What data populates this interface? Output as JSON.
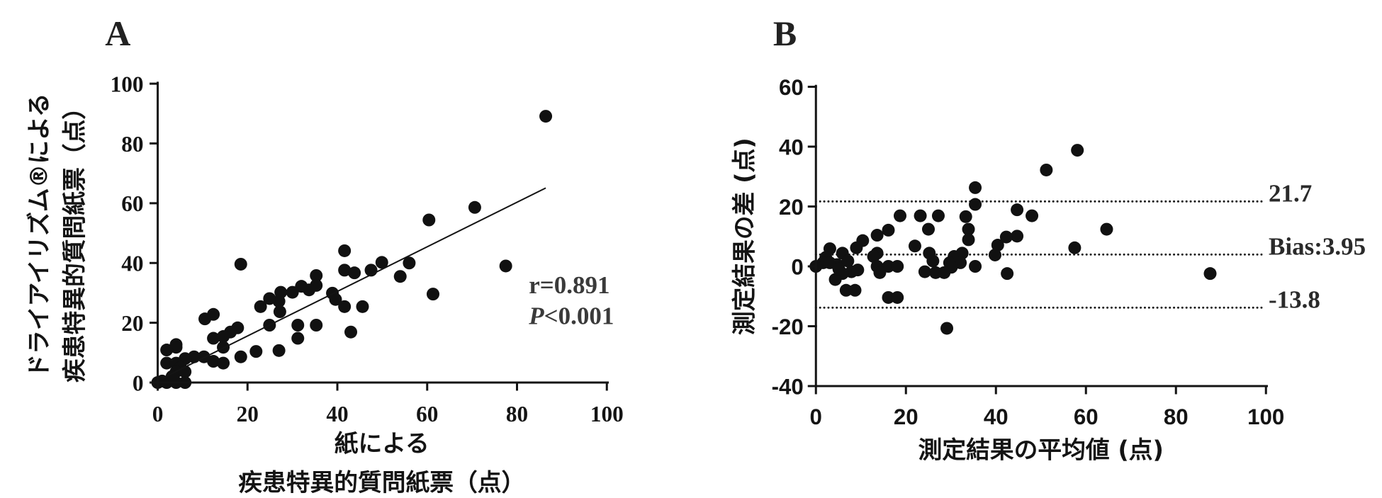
{
  "colors": {
    "ink": "#111111",
    "annotation": "#3a3a3a"
  },
  "chart_data": [
    {
      "panel": "A",
      "type": "scatter",
      "xlabel": [
        "紙による",
        "疾患特異的質問紙票（点）"
      ],
      "ylabel": [
        "ドライアイリズム®による",
        "疾患特異的質問紙票（点）"
      ],
      "xlim": [
        0,
        100
      ],
      "ylim": [
        0,
        100
      ],
      "xticks": [
        0,
        20,
        40,
        60,
        80,
        100
      ],
      "yticks": [
        0,
        20,
        40,
        60,
        80,
        100
      ],
      "grid": false,
      "points": [
        [
          86.4,
          89.1
        ],
        [
          70.6,
          58.6
        ],
        [
          60.4,
          54.4
        ],
        [
          77.5,
          39.0
        ],
        [
          61.3,
          29.6
        ],
        [
          56.0,
          40.0
        ],
        [
          54.0,
          35.5
        ],
        [
          49.9,
          40.2
        ],
        [
          47.5,
          37.6
        ],
        [
          41.6,
          44.1
        ],
        [
          41.6,
          37.6
        ],
        [
          43.8,
          36.7
        ],
        [
          45.6,
          25.4
        ],
        [
          43.0,
          16.9
        ],
        [
          41.6,
          25.4
        ],
        [
          38.9,
          29.9
        ],
        [
          39.6,
          27.8
        ],
        [
          35.3,
          35.8
        ],
        [
          35.3,
          32.5
        ],
        [
          33.7,
          31.0
        ],
        [
          32.0,
          32.2
        ],
        [
          30.0,
          30.2
        ],
        [
          31.2,
          19.2
        ],
        [
          31.2,
          14.8
        ],
        [
          35.3,
          19.2
        ],
        [
          27.4,
          30.2
        ],
        [
          27.0,
          27.2
        ],
        [
          27.2,
          23.7
        ],
        [
          24.9,
          28.1
        ],
        [
          22.9,
          25.4
        ],
        [
          24.9,
          19.2
        ],
        [
          27.0,
          10.7
        ],
        [
          21.9,
          10.4
        ],
        [
          18.5,
          39.6
        ],
        [
          18.5,
          8.6
        ],
        [
          17.8,
          18.3
        ],
        [
          16.2,
          16.9
        ],
        [
          14.6,
          15.4
        ],
        [
          12.4,
          22.8
        ],
        [
          10.5,
          21.3
        ],
        [
          12.4,
          14.8
        ],
        [
          12.4,
          7.1
        ],
        [
          14.6,
          6.5
        ],
        [
          14.6,
          11.8
        ],
        [
          10.3,
          8.6
        ],
        [
          8.1,
          8.6
        ],
        [
          6.1,
          8.0
        ],
        [
          4.1,
          12.7
        ],
        [
          4.1,
          11.8
        ],
        [
          2.0,
          10.9
        ],
        [
          2.0,
          6.5
        ],
        [
          4.1,
          6.5
        ],
        [
          5.1,
          5.0
        ],
        [
          4.1,
          3.6
        ],
        [
          6.1,
          3.6
        ],
        [
          6.1,
          0.0
        ],
        [
          4.1,
          0.0
        ],
        [
          2.0,
          0.0
        ],
        [
          0.0,
          0.0
        ],
        [
          3.2,
          2.0
        ],
        [
          1.0,
          0.5
        ]
      ],
      "fit_line": {
        "x": [
          1.0,
          86.4
        ],
        "y": [
          1.4,
          65.1
        ]
      },
      "annotation": {
        "r": "r=0.891",
        "p_symbol": "P",
        "p_text": "<0.001"
      }
    },
    {
      "panel": "B",
      "type": "scatter",
      "xlabel": "測定結果の平均値 (点)",
      "ylabel": "測定結果の差 (点)",
      "xlim": [
        0,
        100
      ],
      "ylim": [
        -40,
        60
      ],
      "xticks": [
        0,
        20,
        40,
        60,
        80,
        100
      ],
      "yticks": [
        -40,
        -20,
        0,
        20,
        40,
        60
      ],
      "grid": false,
      "points": [
        [
          58.1,
          38.8
        ],
        [
          51.2,
          32.2
        ],
        [
          35.4,
          26.3
        ],
        [
          64.6,
          12.4
        ],
        [
          57.5,
          6.2
        ],
        [
          87.6,
          -2.4
        ],
        [
          48.0,
          16.9
        ],
        [
          44.7,
          18.9
        ],
        [
          44.7,
          10.1
        ],
        [
          42.3,
          9.8
        ],
        [
          40.4,
          7.1
        ],
        [
          39.8,
          3.8
        ],
        [
          42.5,
          -2.4
        ],
        [
          35.4,
          20.7
        ],
        [
          33.3,
          16.6
        ],
        [
          33.9,
          12.4
        ],
        [
          33.9,
          8.9
        ],
        [
          32.5,
          4.4
        ],
        [
          30.7,
          3.3
        ],
        [
          32.1,
          1.2
        ],
        [
          29.7,
          1.2
        ],
        [
          30.1,
          -0.3
        ],
        [
          35.4,
          0.0
        ],
        [
          27.2,
          16.9
        ],
        [
          23.2,
          16.9
        ],
        [
          22.0,
          6.8
        ],
        [
          25.0,
          12.4
        ],
        [
          25.2,
          4.4
        ],
        [
          26.0,
          1.8
        ],
        [
          24.2,
          -1.8
        ],
        [
          26.6,
          -2.1
        ],
        [
          28.5,
          -2.1
        ],
        [
          29.1,
          -20.7
        ],
        [
          18.7,
          16.9
        ],
        [
          16.1,
          12.1
        ],
        [
          13.6,
          10.4
        ],
        [
          13.6,
          4.4
        ],
        [
          12.8,
          3.3
        ],
        [
          13.6,
          0.0
        ],
        [
          16.1,
          0.0
        ],
        [
          18.1,
          0.0
        ],
        [
          16.1,
          -10.4
        ],
        [
          18.1,
          -10.4
        ],
        [
          14.2,
          -2.1
        ],
        [
          10.4,
          8.6
        ],
        [
          9.0,
          6.2
        ],
        [
          5.9,
          4.4
        ],
        [
          4.7,
          0.6
        ],
        [
          7.1,
          1.8
        ],
        [
          7.9,
          -1.8
        ],
        [
          5.9,
          -2.4
        ],
        [
          4.3,
          -4.4
        ],
        [
          6.7,
          -8.0
        ],
        [
          8.7,
          -8.0
        ],
        [
          3.1,
          5.9
        ],
        [
          2.2,
          3.0
        ],
        [
          1.6,
          1.2
        ],
        [
          0.0,
          0.0
        ],
        [
          3.1,
          1.2
        ],
        [
          5.1,
          -0.9
        ],
        [
          9.3,
          -1.2
        ]
      ],
      "reference_lines": [
        {
          "value": 21.7,
          "label": "21.7"
        },
        {
          "value": 3.95,
          "label": "Bias:3.95"
        },
        {
          "value": -13.8,
          "label": "-13.8"
        }
      ]
    }
  ]
}
